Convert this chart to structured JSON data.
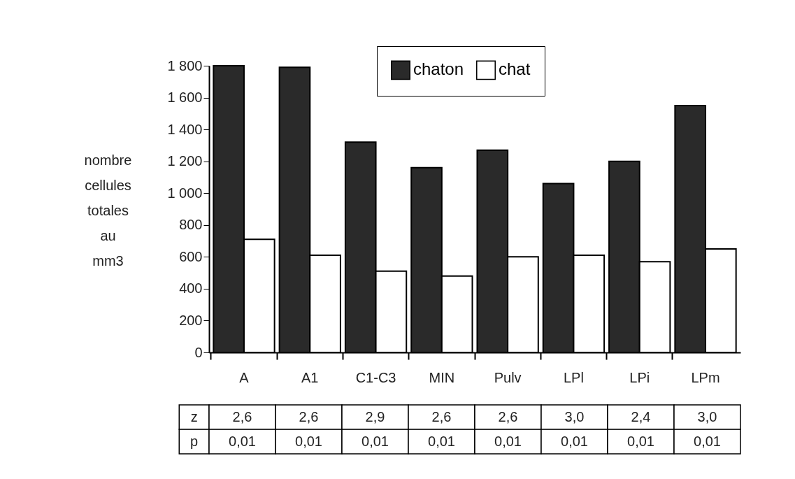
{
  "chart_data": {
    "type": "bar",
    "ylabel": "nombre cellules totales au mm3",
    "categories": [
      "A",
      "A1",
      "C1-C3",
      "MIN",
      "Pulv",
      "LPl",
      "LPi",
      "LPm"
    ],
    "series": [
      {
        "name": "chaton",
        "color": "#2a2a2a",
        "values": [
          1800,
          1790,
          1320,
          1160,
          1270,
          1060,
          1200,
          1550
        ]
      },
      {
        "name": "chat",
        "color": "#ffffff",
        "values": [
          710,
          610,
          510,
          480,
          600,
          610,
          570,
          650
        ]
      }
    ],
    "ylim": [
      0,
      1800
    ],
    "yticks": [
      0,
      200,
      400,
      600,
      800,
      {
        "value": 1000,
        "label": "1 000"
      },
      {
        "value": 1200,
        "label": "1 200"
      },
      {
        "value": 1400,
        "label": "1 400"
      },
      {
        "value": 1600,
        "label": "1 600"
      },
      {
        "value": 1800,
        "label": "1 800"
      }
    ],
    "legend": "top right",
    "grid": false,
    "annotations": [
      "z",
      "2,6",
      "2,6",
      "2,9",
      "2,6",
      "2,6",
      "3,0",
      "2,4",
      "3,0",
      "p",
      "0,01",
      "0,01",
      "0,01",
      "0,01",
      "0,01",
      "0,01",
      "0,01",
      "0,01"
    ]
  }
}
